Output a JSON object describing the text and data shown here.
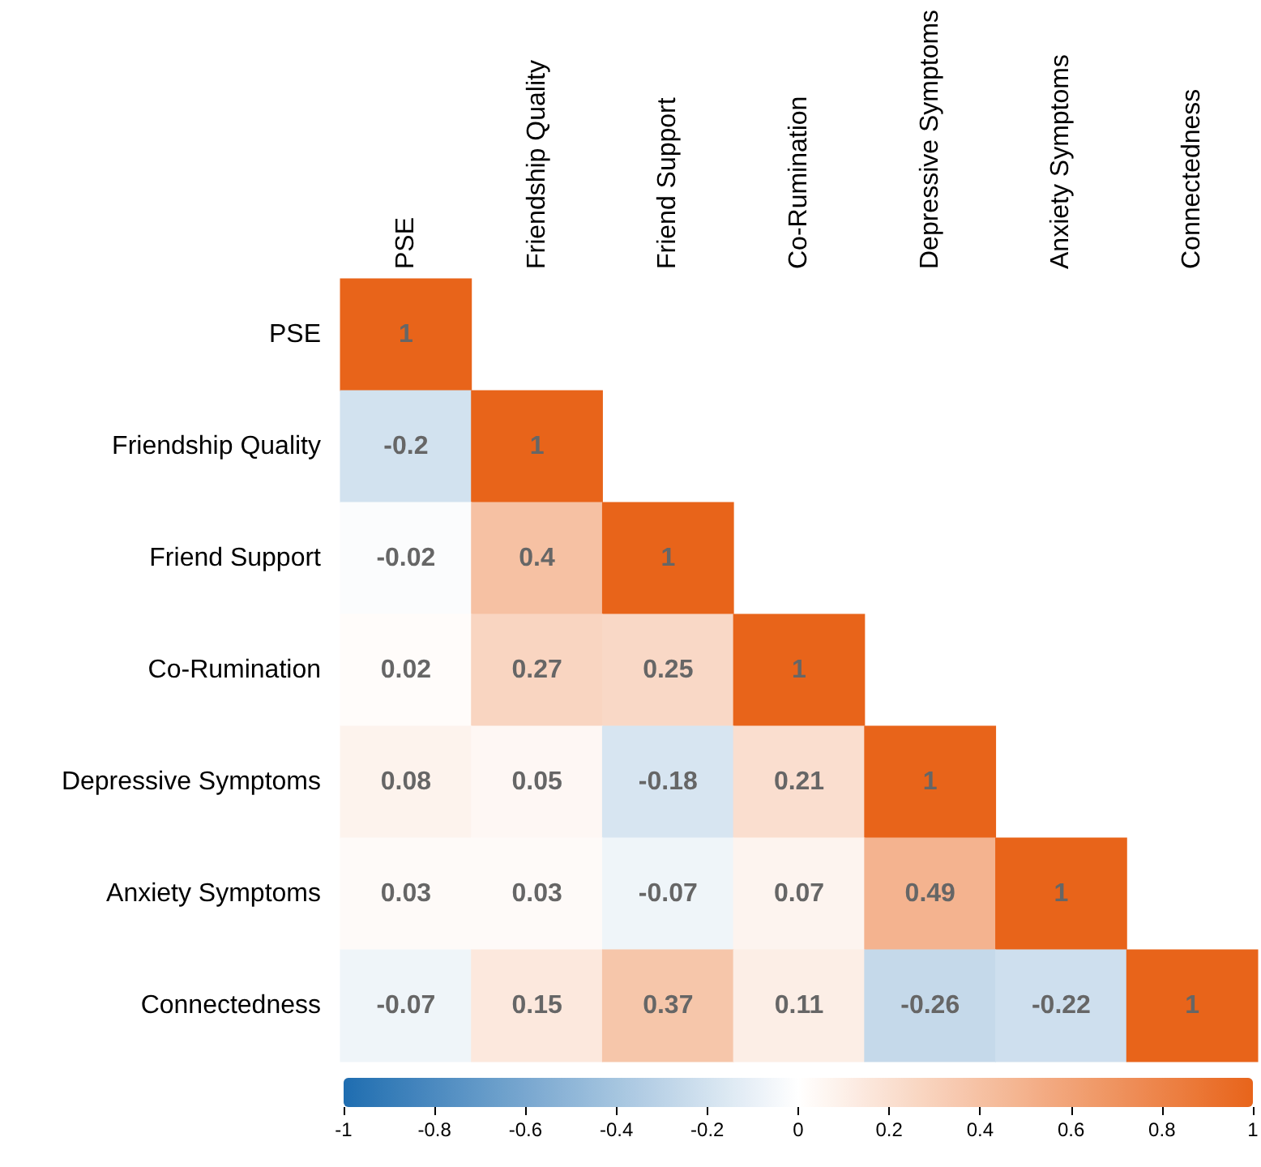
{
  "chart_data": {
    "type": "heatmap",
    "categories": [
      "PSE",
      "Friendship Quality",
      "Friend Support",
      "Co-Rumination",
      "Depressive Symptoms",
      "Anxiety Symptoms",
      "Connectedness"
    ],
    "y_categories": [
      "PSE",
      "Friendship Quality",
      "Friend Support",
      "Co-Rumination",
      "Depressive Symptoms",
      "Anxiety Symptoms",
      "Connectedness"
    ],
    "cells": [
      [
        1,
        null,
        null,
        null,
        null,
        null,
        null
      ],
      [
        -0.2,
        1,
        null,
        null,
        null,
        null,
        null
      ],
      [
        -0.02,
        0.4,
        1,
        null,
        null,
        null,
        null
      ],
      [
        0.02,
        0.27,
        0.25,
        1,
        null,
        null,
        null
      ],
      [
        0.08,
        0.05,
        -0.18,
        0.21,
        1,
        null,
        null
      ],
      [
        0.03,
        0.03,
        -0.07,
        0.07,
        0.49,
        1,
        null
      ],
      [
        -0.07,
        0.15,
        0.37,
        0.11,
        -0.26,
        -0.22,
        1
      ]
    ],
    "data_labels": true,
    "clim": [
      -1,
      1
    ],
    "cticks": [
      -1,
      -0.8,
      -0.6,
      -0.4,
      -0.2,
      0,
      0.2,
      0.4,
      0.6,
      0.8,
      1
    ]
  }
}
